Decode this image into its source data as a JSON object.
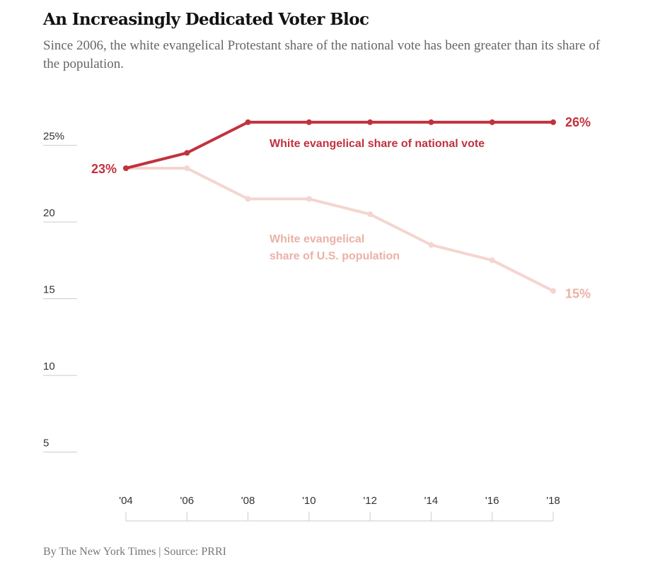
{
  "header": {
    "title": "An Increasingly Dedicated Voter Bloc",
    "subtitle": "Since 2006, the white evangelical Protestant share of the national vote has been greater than its share of the population."
  },
  "footer": {
    "credit": "By The New York Times | Source: PRRI"
  },
  "chart_data": {
    "type": "line",
    "title": "An Increasingly Dedicated Voter Bloc",
    "xlabel": "",
    "ylabel": "",
    "x": [
      "'04",
      "'06",
      "'08",
      "'10",
      "'12",
      "'14",
      "'16",
      "'18"
    ],
    "ylim": [
      0,
      27
    ],
    "yticks": [
      5,
      10,
      15,
      20,
      25
    ],
    "ytick_labels": [
      "5",
      "10",
      "15",
      "20",
      "25%"
    ],
    "grid": false,
    "series": [
      {
        "name": "White evangelical share of national vote",
        "label_lines": [
          "White evangelical share of national vote"
        ],
        "color": "#c1323d",
        "values": [
          23,
          24,
          26,
          26,
          26,
          26,
          26,
          26
        ],
        "start_label": "23%",
        "end_label": "26%"
      },
      {
        "name": "White evangelical share of U.S. population",
        "label_lines": [
          "White evangelical",
          "share of U.S. population"
        ],
        "color": "#f4d5cf",
        "text_color": "#ebb1a6",
        "values": [
          23,
          23,
          21,
          21,
          20,
          18,
          17,
          15
        ],
        "end_label": "15%"
      }
    ]
  }
}
